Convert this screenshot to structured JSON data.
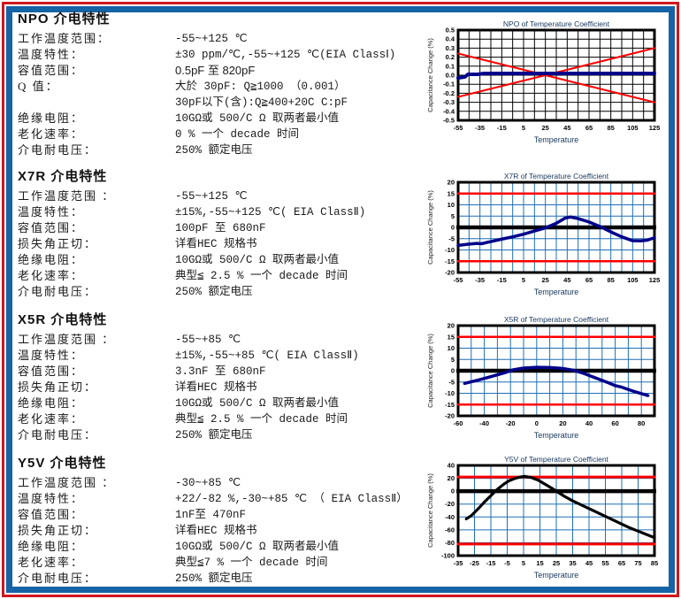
{
  "colors": {
    "border_red": "#CE181E",
    "border_blue": "#1663A5",
    "curve_navy": "#00008B",
    "limit_red": "#FF0000",
    "grid_blue": "#1F6FB5",
    "text": "#1A1A1A"
  },
  "sections": [
    {
      "title": "NPO 介电特性",
      "rows": [
        {
          "label": "工作温度范围：",
          "value": "-55~+125 ℃"
        },
        {
          "label": "温度特性：",
          "value": "±30 ppm/℃,-55~+125 ℃(EIA ClassⅠ)"
        },
        {
          "label": "容值范围：",
          "value": "0.5pF 至 820pF",
          "sans": true
        },
        {
          "label": "Q 值：",
          "value": "大於 30pF: Q≧1000 （0.001）"
        },
        {
          "label": "",
          "value": "30pF以下(含):Q≧400+20C C:pF"
        },
        {
          "label": "绝缘电阻：",
          "value": "10GΩ或 500/C Ω 取两者最小值"
        },
        {
          "label": "老化速率：",
          "value": "0 % 一个 decade 时间"
        },
        {
          "label": "介电耐电压：",
          "value": "250% 额定电压"
        }
      ]
    },
    {
      "title": "X7R 介电特性",
      "rows": [
        {
          "label": "工作温度范围 ：",
          "value": "-55~+125 ℃"
        },
        {
          "label": "温度特性：",
          "value": "±15%,-55~+125 ℃( EIA ClassⅡ)"
        },
        {
          "label": "容值范围：",
          "value": "100pF 至 680nF"
        },
        {
          "label": "损失角正切：",
          "value": "详看HEC 规格书"
        },
        {
          "label": "绝缘电阻：",
          "value": "10GΩ或 500/C Ω 取两者最小值"
        },
        {
          "label": "老化速率：",
          "value": "典型≦ 2.5 % 一个 decade 时间"
        },
        {
          "label": "介电耐电压：",
          "value": "250% 额定电压"
        }
      ]
    },
    {
      "title": "X5R 介电特性",
      "rows": [
        {
          "label": "工作温度范围 ：",
          "value": "-55~+85 ℃"
        },
        {
          "label": "温度特性：",
          "value": "±15%,-55~+85 ℃( EIA ClassⅡ)"
        },
        {
          "label": "容值范围：",
          "value": "3.3nF 至 680nF"
        },
        {
          "label": "损失角正切：",
          "value": "详看HEC 规格书"
        },
        {
          "label": "绝缘电阻：",
          "value": "10GΩ或 500/C Ω 取两者最小值"
        },
        {
          "label": "老化速率：",
          "value": "典型≦ 2.5 % 一个 decade 时间"
        },
        {
          "label": "介电耐电压：",
          "value": "250% 额定电压"
        }
      ]
    },
    {
      "title": "Y5V 介电特性",
      "rows": [
        {
          "label": "工作温度范围 ：",
          "value": "-30~+85 ℃"
        },
        {
          "label": "温度特性：",
          "value": "+22/-82 %,-30~+85 ℃ （ EIA ClassⅡ）"
        },
        {
          "label": "容值范围：",
          "value": "1nF至 470nF"
        },
        {
          "label": "损失角正切：",
          "value": "详看HEC 规格书"
        },
        {
          "label": "绝缘电阻：",
          "value": "10GΩ或 500/C Ω 取两者最小值"
        },
        {
          "label": "老化速率：",
          "value": "典型≦7 % 一个 decade 时间"
        },
        {
          "label": "介电耐电压：",
          "value": "250% 额定电压"
        }
      ]
    }
  ],
  "chart_data": [
    {
      "type": "line",
      "title": "NPO of  Temperature Coefficient",
      "xlabel": "Temperature",
      "ylabel": "Capacitance Change (%)",
      "xlim": [
        -55,
        125
      ],
      "ylim": [
        -0.5,
        0.5
      ],
      "grid_x": 10,
      "grid_y": 0.1,
      "grid_color": "#000000",
      "zero_line": false,
      "xticks": [
        "-55",
        "-35",
        "-15",
        "5",
        "25",
        "45",
        "65",
        "85",
        "105",
        "125"
      ],
      "yticks": [
        "0.5",
        "0.4",
        "0.3",
        "0.2",
        "0.1",
        "0.0",
        "-0.1",
        "-0.2",
        "-0.3",
        "-0.4",
        "-0.5"
      ],
      "series": [
        {
          "name": "upper-limit-+30ppm",
          "color": "#FF0000",
          "width": 2,
          "points": [
            [
              -55,
              0.24
            ],
            [
              125,
              -0.3
            ]
          ]
        },
        {
          "name": "lower-limit--30ppm",
          "color": "#FF0000",
          "width": 2,
          "points": [
            [
              -55,
              -0.24
            ],
            [
              125,
              0.3
            ]
          ]
        },
        {
          "name": "typical",
          "color": "#00008B",
          "width": 4,
          "points": [
            [
              -55,
              -0.03
            ],
            [
              -49,
              -0.02
            ],
            [
              -46,
              0.01
            ],
            [
              -37,
              0.01
            ],
            [
              -31,
              0.02
            ],
            [
              25,
              0.02
            ],
            [
              125,
              0.02
            ]
          ]
        }
      ]
    },
    {
      "type": "line",
      "title": "X7R of  Temperature Coefficient",
      "xlabel": "Temperature",
      "ylabel": "Capacitance Change (%)",
      "xlim": [
        -55,
        125
      ],
      "ylim": [
        -20,
        20
      ],
      "grid_x": 10,
      "grid_y": 5,
      "grid_color": "#1F6FB5",
      "zero_line": true,
      "xticks": [
        "-55",
        "-35",
        "-15",
        "5",
        "25",
        "45",
        "65",
        "85",
        "105",
        "125"
      ],
      "yticks": [
        "20",
        "15",
        "10",
        "5",
        "0",
        "-5",
        "-10",
        "-15",
        "-20"
      ],
      "series": [
        {
          "name": "upper-limit-+15",
          "color": "#FF0000",
          "width": 2.5,
          "points": [
            [
              -55,
              15
            ],
            [
              125,
              15
            ]
          ]
        },
        {
          "name": "lower-limit--15",
          "color": "#FF0000",
          "width": 2.5,
          "points": [
            [
              -55,
              -15
            ],
            [
              125,
              -15
            ]
          ]
        },
        {
          "name": "typical",
          "color": "#00008B",
          "width": 3.5,
          "points": [
            [
              -55,
              -8
            ],
            [
              -45,
              -7.4
            ],
            [
              -38,
              -7.1
            ],
            [
              -33,
              -7.2
            ],
            [
              -28,
              -6.6
            ],
            [
              -25,
              -6.3
            ],
            [
              -15,
              -5.2
            ],
            [
              -5,
              -4.2
            ],
            [
              5,
              -3
            ],
            [
              15,
              -1.6
            ],
            [
              25,
              -0.2
            ],
            [
              35,
              1.8
            ],
            [
              43,
              4.1
            ],
            [
              48,
              4.6
            ],
            [
              55,
              3.9
            ],
            [
              65,
              2.4
            ],
            [
              75,
              0.4
            ],
            [
              85,
              -2
            ],
            [
              95,
              -4.2
            ],
            [
              105,
              -5.9
            ],
            [
              112,
              -6
            ],
            [
              118,
              -5.7
            ],
            [
              125,
              -4.6
            ]
          ]
        }
      ]
    },
    {
      "type": "line",
      "title": "X5R of  Temperature Coefficient",
      "xlabel": "Temperature",
      "ylabel": "Capacitance Change (%)",
      "xlim": [
        -60,
        90
      ],
      "ylim": [
        -20,
        20
      ],
      "grid_x": 10,
      "grid_y": 5,
      "grid_color": "#1F6FB5",
      "zero_line": true,
      "xticks": [
        "-60",
        "-40",
        "-20",
        "0",
        "20",
        "40",
        "60",
        "80"
      ],
      "yticks": [
        "20",
        "15",
        "10",
        "5",
        "0",
        "-5",
        "-10",
        "-15",
        "-20"
      ],
      "series": [
        {
          "name": "upper-limit-+15",
          "color": "#FF0000",
          "width": 2.5,
          "points": [
            [
              -60,
              15
            ],
            [
              90,
              15
            ]
          ]
        },
        {
          "name": "lower-limit--15",
          "color": "#FF0000",
          "width": 2.5,
          "points": [
            [
              -60,
              -15
            ],
            [
              90,
              -15
            ]
          ]
        },
        {
          "name": "typical",
          "color": "#00008B",
          "width": 3.5,
          "points": [
            [
              -55,
              -5.6
            ],
            [
              -45,
              -4.2
            ],
            [
              -35,
              -2.6
            ],
            [
              -25,
              -1
            ],
            [
              -18,
              0.4
            ],
            [
              -10,
              1.2
            ],
            [
              0,
              1.5
            ],
            [
              10,
              1.4
            ],
            [
              20,
              1
            ],
            [
              28,
              0.2
            ],
            [
              35,
              -1
            ],
            [
              45,
              -3.2
            ],
            [
              55,
              -5.4
            ],
            [
              60,
              -6.6
            ],
            [
              65,
              -7.3
            ],
            [
              75,
              -9.3
            ],
            [
              85,
              -11
            ]
          ]
        }
      ]
    },
    {
      "type": "line",
      "title": "Y5V of  Temperature Coefficient",
      "xlabel": "Temperature",
      "ylabel": "Capacitance Change (%)",
      "xlim": [
        -35,
        85
      ],
      "ylim": [
        -100,
        40
      ],
      "grid_x": 10,
      "grid_y": 20,
      "grid_color": "#1F6FB5",
      "zero_line": true,
      "xticks": [
        "-35",
        "-25",
        "-15",
        "-5",
        "5",
        "15",
        "25",
        "35",
        "45",
        "55",
        "65",
        "75",
        "85"
      ],
      "yticks": [
        "40",
        "20",
        "0",
        "-20",
        "-40",
        "-60",
        "-80",
        "-100"
      ],
      "series": [
        {
          "name": "upper-limit-+22",
          "color": "#FF0000",
          "width": 3,
          "points": [
            [
              -35,
              22
            ],
            [
              85,
              22
            ]
          ]
        },
        {
          "name": "lower-limit--82",
          "color": "#FF0000",
          "width": 3,
          "points": [
            [
              -35,
              -82
            ],
            [
              85,
              -82
            ]
          ]
        },
        {
          "name": "typical",
          "color": "#000000",
          "width": 3.2,
          "points": [
            [
              -30,
              -43
            ],
            [
              -27,
              -38
            ],
            [
              -23,
              -28
            ],
            [
              -19,
              -17
            ],
            [
              -15,
              -7
            ],
            [
              -11,
              3
            ],
            [
              -7,
              11
            ],
            [
              -4,
              16
            ],
            [
              0,
              20
            ],
            [
              3,
              22
            ],
            [
              6,
              23
            ],
            [
              10,
              21
            ],
            [
              14,
              17
            ],
            [
              18,
              11
            ],
            [
              22,
              5
            ],
            [
              25,
              0
            ],
            [
              30,
              -8
            ],
            [
              35,
              -15
            ],
            [
              40,
              -21
            ],
            [
              45,
              -27
            ],
            [
              50,
              -33
            ],
            [
              55,
              -39
            ],
            [
              60,
              -45
            ],
            [
              65,
              -51
            ],
            [
              70,
              -57
            ],
            [
              75,
              -62
            ],
            [
              80,
              -67
            ],
            [
              85,
              -72
            ]
          ]
        }
      ]
    }
  ]
}
